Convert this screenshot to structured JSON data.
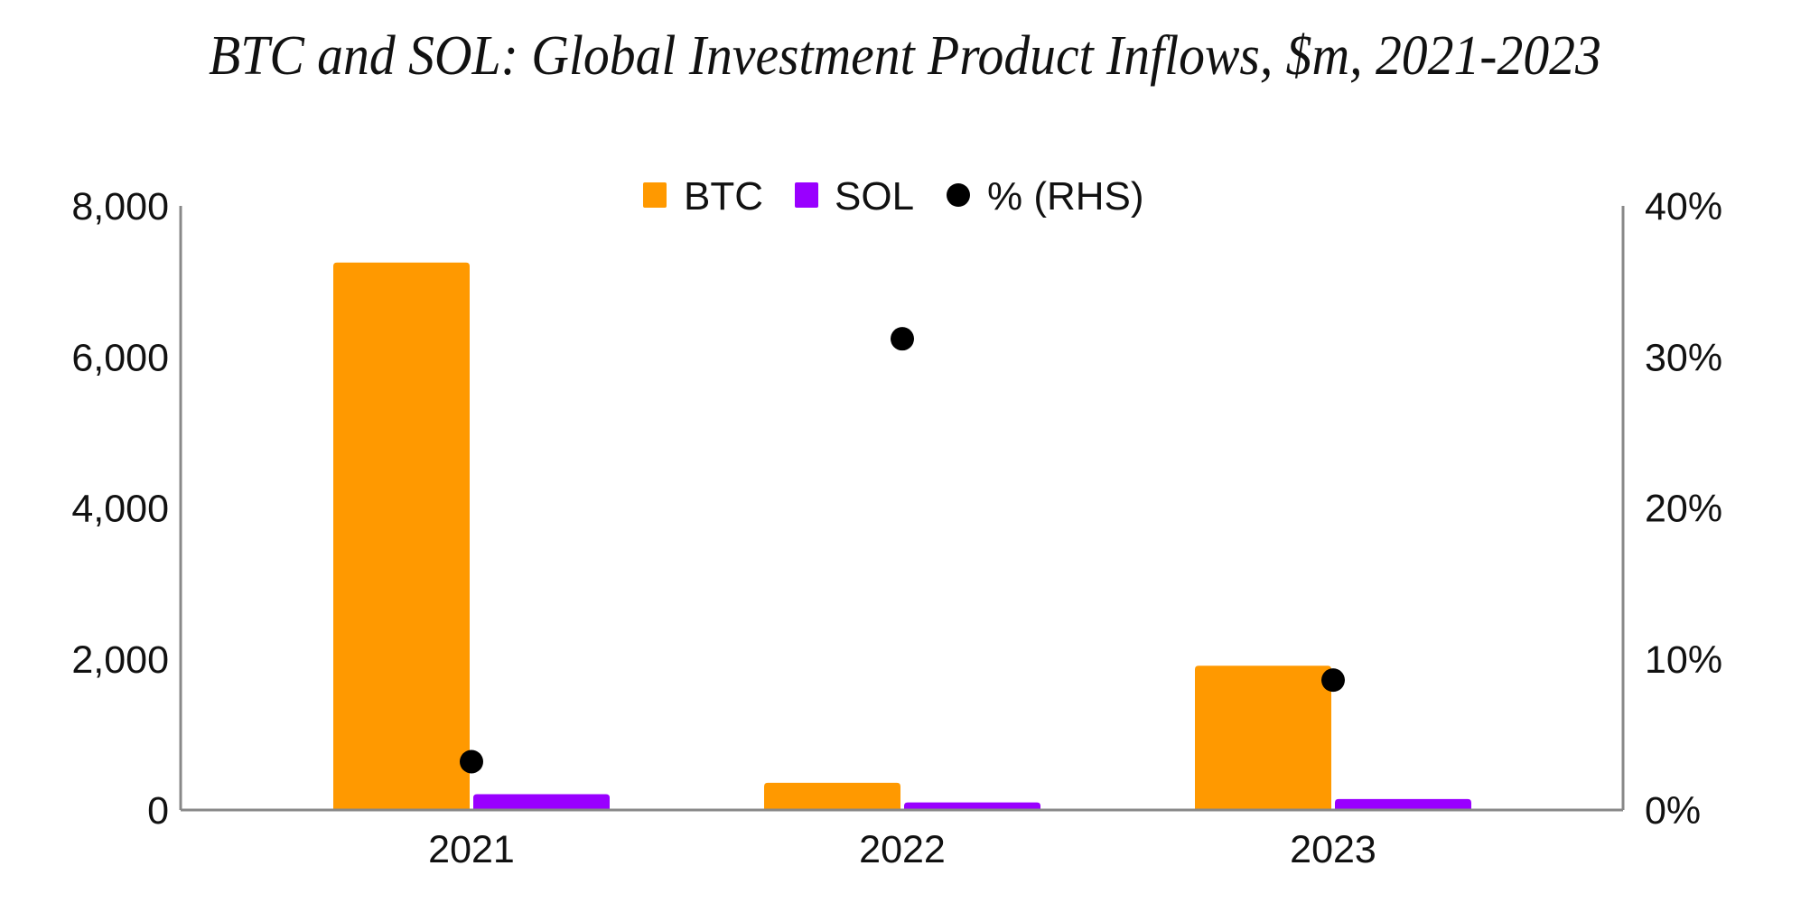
{
  "chart_data": {
    "type": "bar",
    "title": "BTC and SOL: Global Investment Product Inflows, $m, 2021-2023",
    "categories": [
      "2021",
      "2022",
      "2023"
    ],
    "series": [
      {
        "name": "BTC",
        "type": "bar",
        "axis": "left",
        "color": "#FF9900",
        "values": [
          7250,
          360,
          1910
        ]
      },
      {
        "name": "SOL",
        "type": "bar",
        "axis": "left",
        "color": "#9900FF",
        "values": [
          210,
          100,
          145
        ]
      },
      {
        "name": "% (RHS)",
        "type": "scatter",
        "axis": "right",
        "color": "#000000",
        "values": [
          3.2,
          31.2,
          8.6
        ]
      }
    ],
    "left_axis": {
      "ylim": [
        0,
        8000
      ],
      "ticks": [
        0,
        2000,
        4000,
        6000,
        8000
      ],
      "tick_labels": [
        "0",
        "2,000",
        "4,000",
        "6,000",
        "8,000"
      ]
    },
    "right_axis": {
      "ylim": [
        0,
        40
      ],
      "ticks": [
        0,
        10,
        20,
        30,
        40
      ],
      "tick_labels": [
        "0%",
        "10%",
        "20%",
        "30%",
        "40%"
      ]
    },
    "xlabel": "",
    "ylabel": "",
    "grid": false,
    "legend_position": "top-center",
    "axis_color": "#888888"
  }
}
